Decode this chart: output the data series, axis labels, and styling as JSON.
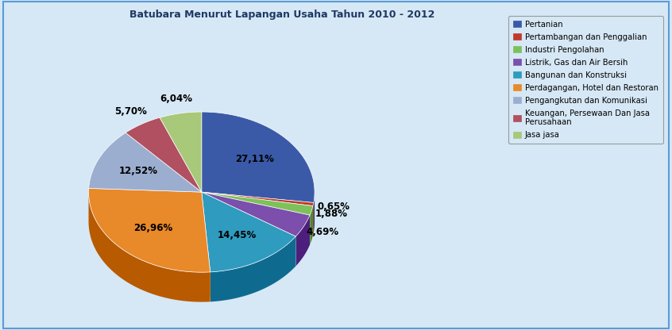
{
  "title": "Batubara Menurut Lapangan Usaha Tahun 2010 - 2012",
  "labels": [
    "Pertanian",
    "Pertambangan dan Penggalian",
    "Industri Pengolahan",
    "Listrik, Gas dan Air Bersih",
    "Bangunan dan Konstruksi",
    "Perdagangan, Hotel dan Restoran",
    "Pengangkutan dan Komunikasi",
    "Keuangan, Persewaan Dan Jasa\nPerusahaan",
    "Jasa jasa"
  ],
  "values": [
    27.11,
    0.65,
    1.88,
    4.69,
    14.45,
    26.96,
    12.52,
    5.7,
    6.04
  ],
  "colors": [
    "#3A5AA8",
    "#C0392B",
    "#7DC15A",
    "#7B4FAB",
    "#2E9BBF",
    "#E8892A",
    "#9BAED0",
    "#B05060",
    "#A8C87A"
  ],
  "dark_colors": [
    "#1A3A78",
    "#8B1A1A",
    "#4A8A2A",
    "#4B1F7B",
    "#0E6B8F",
    "#B85A00",
    "#5B7EA0",
    "#702030",
    "#688A4A"
  ],
  "pct_labels": [
    "27,11%",
    "0,65%",
    "1,88%",
    "4,69%",
    "14,45%",
    "26,96%",
    "12,52%",
    "5,70%",
    "6,04%"
  ],
  "background_color": "#D6E8F5",
  "startangle": 90,
  "depth": 0.12,
  "legend_labels": [
    "Pertanian",
    "Pertambangan dan Penggalian",
    "Industri Pengolahan",
    "Listrik, Gas dan Air Bersih",
    "Bangunan dan Konstruksi",
    "Perdagangan, Hotel dan Restoran",
    "Pengangkutan dan Komunikasi",
    "Keuangan, Persewaan Dan Jasa\nPerusahaan",
    "Jasa jasa"
  ]
}
